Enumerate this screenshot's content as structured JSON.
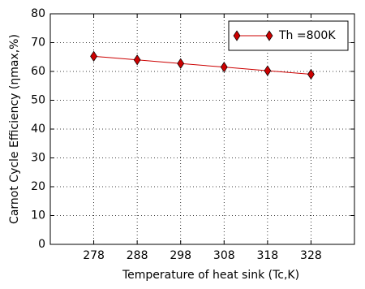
{
  "chart_data": {
    "type": "line",
    "xlabel": "Temperature of heat sink (Tc,K)",
    "ylabel": "Carnot Cycle Efficiency (ηmax,%)",
    "x": [
      278,
      288,
      298,
      308,
      318,
      328
    ],
    "series": [
      {
        "name": "Th =800K",
        "color": "#cc0000",
        "values": [
          65.25,
          64,
          62.75,
          61.5,
          60.25,
          59
        ]
      }
    ],
    "xlim": [
      268,
      338
    ],
    "xticks": [
      278,
      288,
      298,
      308,
      318,
      328
    ],
    "ylim": [
      0,
      80
    ],
    "yticks": [
      0,
      10,
      20,
      30,
      40,
      50,
      60,
      70,
      80
    ],
    "grid": true,
    "legend": "upper right"
  }
}
